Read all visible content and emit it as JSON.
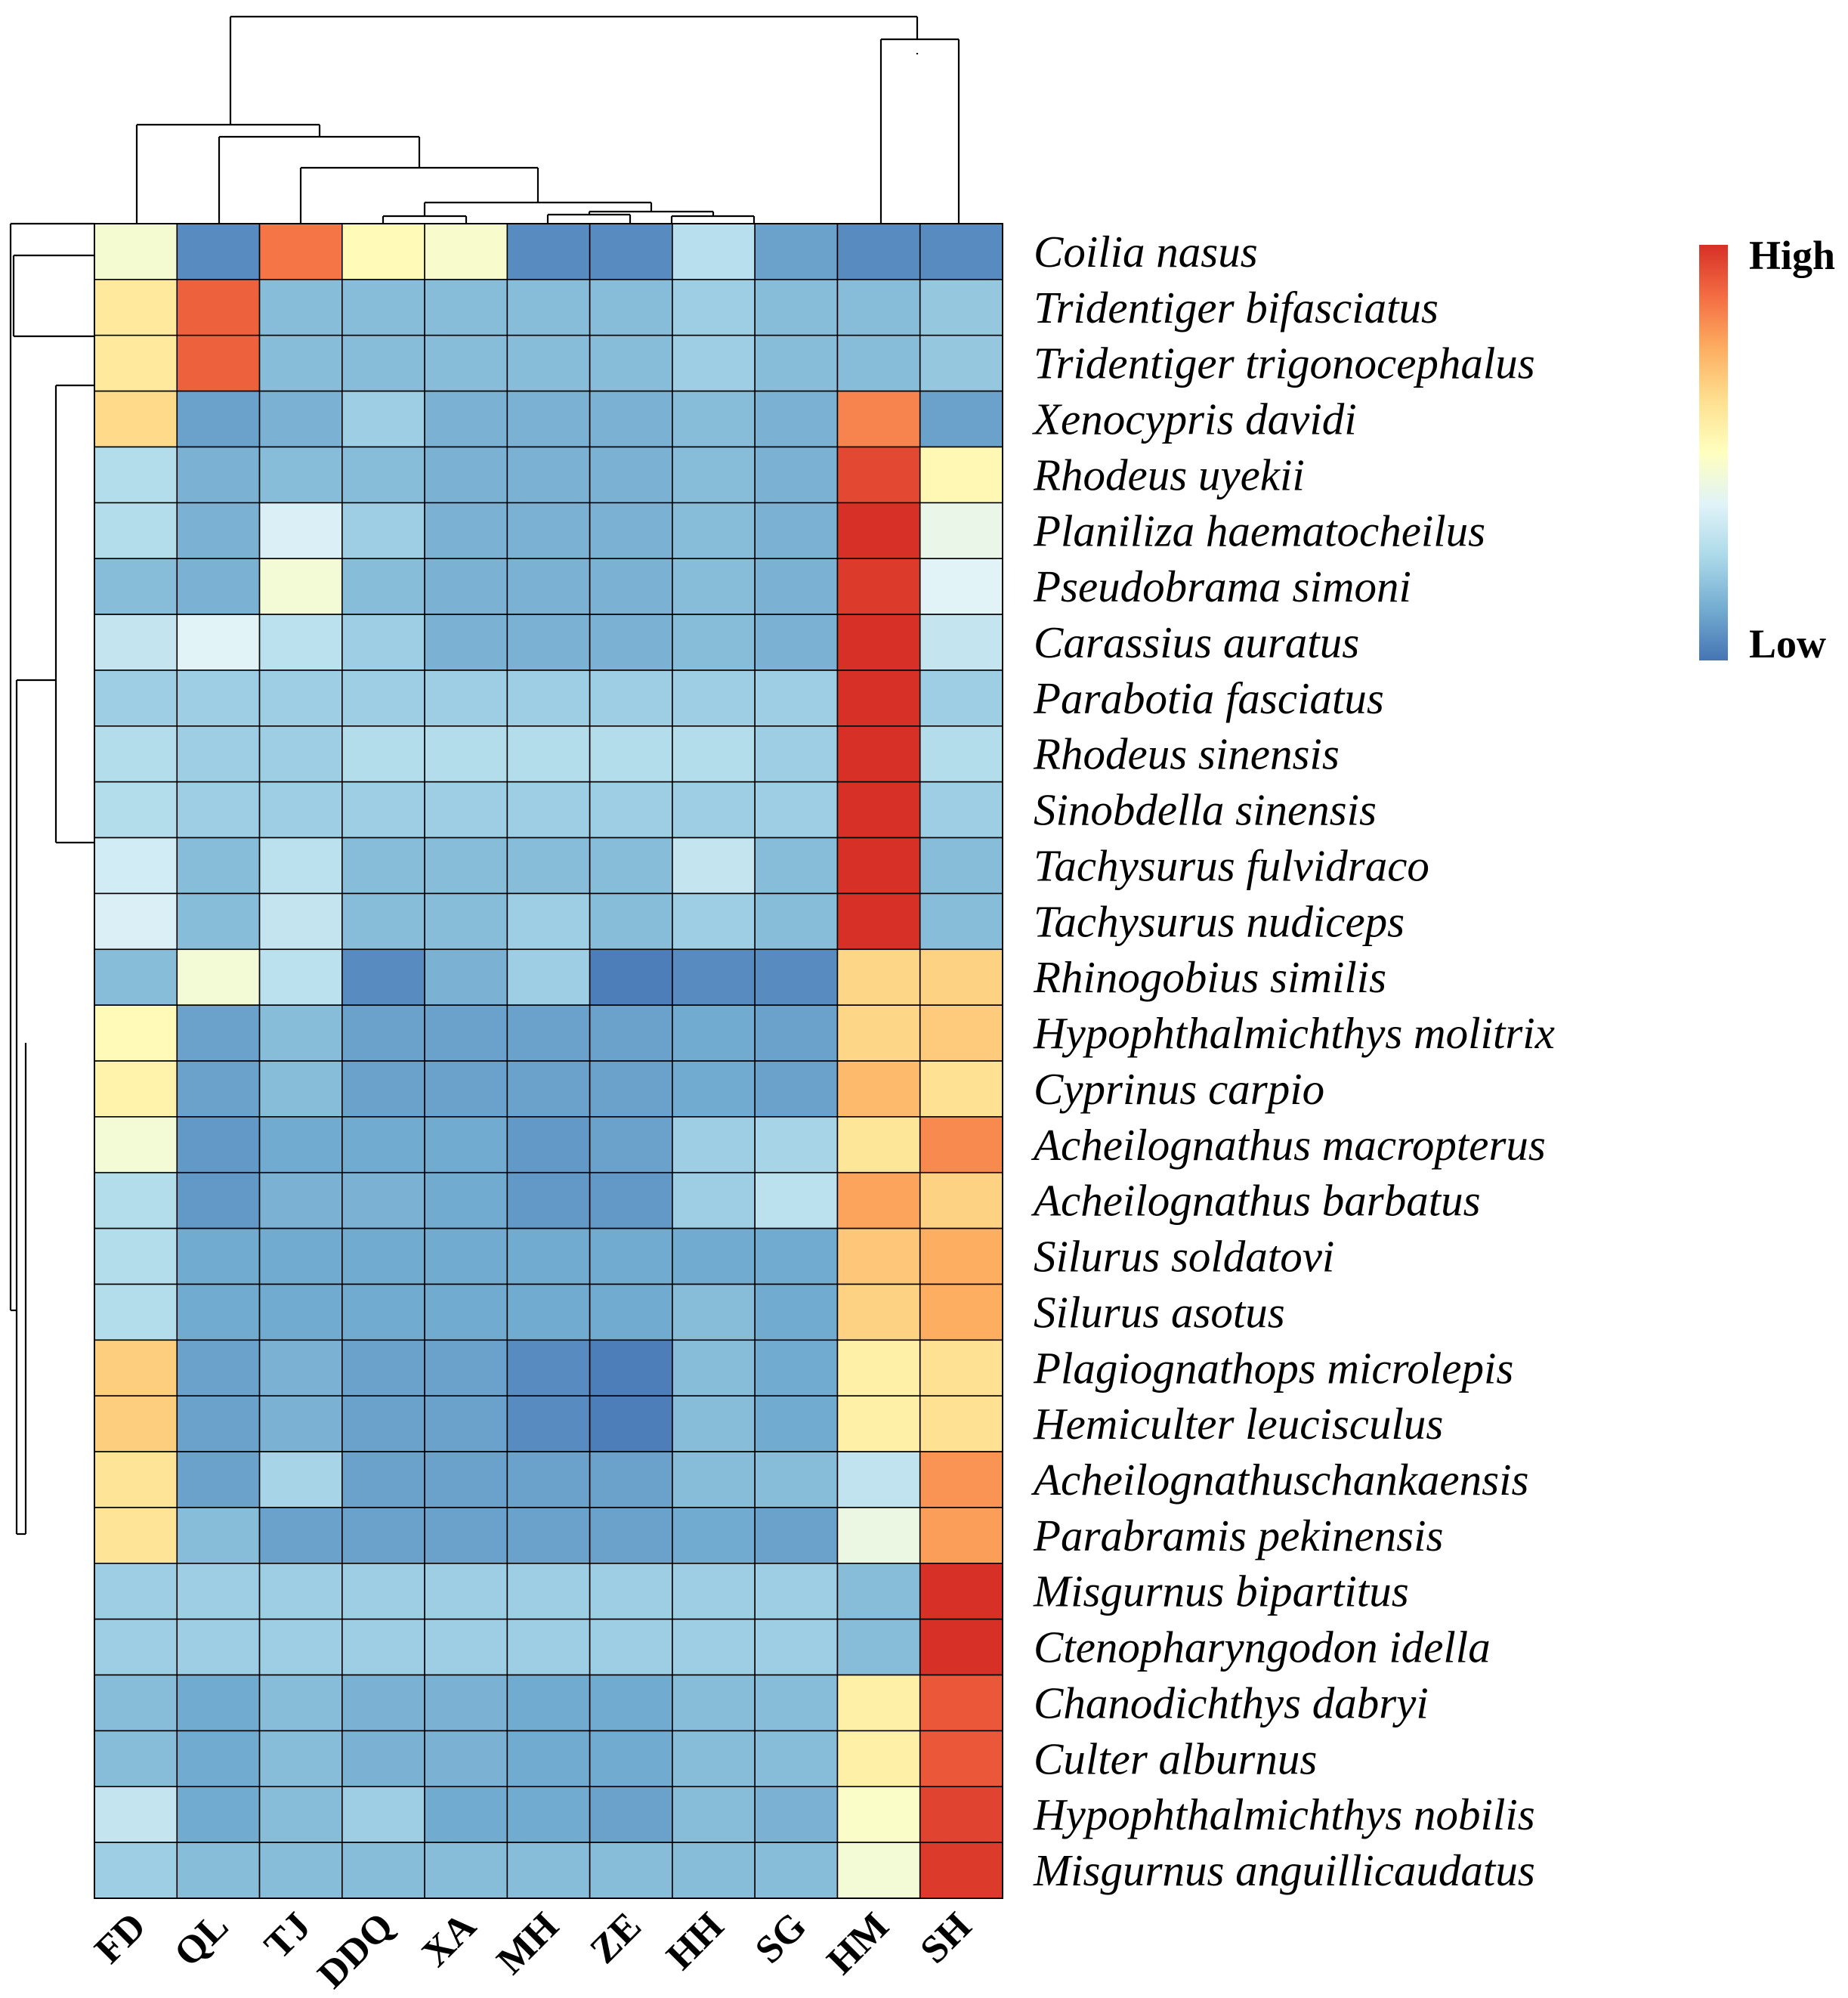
{
  "chart_data": {
    "type": "heatmap",
    "title": "",
    "columns": [
      "FD",
      "QL",
      "TJ",
      "DDQ",
      "XA",
      "MH",
      "ZE",
      "HH",
      "SG",
      "HM",
      "SH"
    ],
    "rows": [
      "Coilia nasus",
      "Tridentiger bifasciatus",
      "Tridentiger trigonocephalus",
      "Xenocypris davidi",
      "Rhodeus uyekii",
      "Planiliza haematocheilus",
      "Pseudobrama simoni",
      "Carassius auratus",
      "Parabotia fasciatus",
      "Rhodeus sinensis",
      "Sinobdella sinensis",
      "Tachysurus fulvidraco",
      "Tachysurus nudiceps",
      "Rhinogobius similis",
      "Hypophthalmichthys molitrix",
      "Cyprinus carpio",
      "Acheilognathus macropterus",
      "Acheilognathus barbatus",
      "Silurus soldatovi",
      "Silurus asotus",
      "Plagiognathops microlepis",
      "Hemiculter leucisculus",
      "Acheilognathuschankaensis",
      "Parabramis pekinensis",
      "Misgurnus bipartitus",
      "Ctenopharyngodon idella",
      "Chanodichthys dabryi",
      "Culter alburnus",
      "Hypophthalmichthys nobilis",
      "Misgurnus anguillicaudatus"
    ],
    "values": [
      [
        0.46,
        0.05,
        0.86,
        0.52,
        0.47,
        0.05,
        0.05,
        0.28,
        0.1,
        0.05,
        0.05
      ],
      [
        0.59,
        0.9,
        0.17,
        0.17,
        0.17,
        0.17,
        0.17,
        0.22,
        0.17,
        0.17,
        0.2
      ],
      [
        0.59,
        0.9,
        0.17,
        0.17,
        0.17,
        0.17,
        0.17,
        0.22,
        0.17,
        0.17,
        0.2
      ],
      [
        0.64,
        0.1,
        0.14,
        0.22,
        0.14,
        0.14,
        0.14,
        0.17,
        0.14,
        0.83,
        0.1
      ],
      [
        0.27,
        0.14,
        0.17,
        0.17,
        0.14,
        0.14,
        0.14,
        0.17,
        0.14,
        0.95,
        0.53
      ],
      [
        0.27,
        0.14,
        0.36,
        0.22,
        0.14,
        0.14,
        0.14,
        0.17,
        0.14,
        1.0,
        0.41
      ],
      [
        0.17,
        0.14,
        0.45,
        0.17,
        0.14,
        0.14,
        0.14,
        0.17,
        0.14,
        0.98,
        0.38
      ],
      [
        0.31,
        0.38,
        0.29,
        0.22,
        0.14,
        0.14,
        0.14,
        0.17,
        0.14,
        1.0,
        0.31
      ],
      [
        0.22,
        0.22,
        0.22,
        0.22,
        0.22,
        0.22,
        0.22,
        0.22,
        0.22,
        1.0,
        0.22
      ],
      [
        0.27,
        0.22,
        0.22,
        0.27,
        0.27,
        0.27,
        0.27,
        0.27,
        0.22,
        1.0,
        0.27
      ],
      [
        0.27,
        0.22,
        0.22,
        0.22,
        0.22,
        0.22,
        0.22,
        0.22,
        0.22,
        1.0,
        0.22
      ],
      [
        0.34,
        0.17,
        0.29,
        0.17,
        0.17,
        0.17,
        0.17,
        0.31,
        0.17,
        1.0,
        0.17
      ],
      [
        0.36,
        0.17,
        0.31,
        0.17,
        0.17,
        0.22,
        0.17,
        0.22,
        0.17,
        1.0,
        0.17
      ],
      [
        0.17,
        0.45,
        0.29,
        0.05,
        0.14,
        0.22,
        0.02,
        0.05,
        0.05,
        0.65,
        0.66
      ],
      [
        0.52,
        0.1,
        0.17,
        0.1,
        0.1,
        0.1,
        0.1,
        0.12,
        0.1,
        0.65,
        0.68
      ],
      [
        0.55,
        0.1,
        0.17,
        0.1,
        0.1,
        0.1,
        0.1,
        0.12,
        0.1,
        0.72,
        0.62
      ],
      [
        0.45,
        0.08,
        0.12,
        0.12,
        0.12,
        0.08,
        0.1,
        0.22,
        0.24,
        0.6,
        0.82
      ],
      [
        0.27,
        0.08,
        0.14,
        0.14,
        0.12,
        0.08,
        0.08,
        0.22,
        0.29,
        0.77,
        0.66
      ],
      [
        0.27,
        0.12,
        0.12,
        0.12,
        0.12,
        0.12,
        0.12,
        0.12,
        0.12,
        0.69,
        0.75
      ],
      [
        0.27,
        0.12,
        0.12,
        0.12,
        0.12,
        0.12,
        0.12,
        0.17,
        0.12,
        0.66,
        0.75
      ],
      [
        0.67,
        0.1,
        0.14,
        0.1,
        0.1,
        0.05,
        0.02,
        0.17,
        0.12,
        0.56,
        0.62
      ],
      [
        0.67,
        0.1,
        0.14,
        0.1,
        0.1,
        0.05,
        0.02,
        0.17,
        0.12,
        0.56,
        0.62
      ],
      [
        0.61,
        0.1,
        0.24,
        0.1,
        0.1,
        0.1,
        0.1,
        0.17,
        0.17,
        0.3,
        0.8
      ],
      [
        0.61,
        0.17,
        0.1,
        0.1,
        0.1,
        0.1,
        0.1,
        0.12,
        0.1,
        0.42,
        0.78
      ],
      [
        0.22,
        0.22,
        0.22,
        0.22,
        0.22,
        0.22,
        0.22,
        0.22,
        0.22,
        0.17,
        1.0
      ],
      [
        0.22,
        0.22,
        0.22,
        0.22,
        0.22,
        0.22,
        0.22,
        0.22,
        0.22,
        0.17,
        1.0
      ],
      [
        0.17,
        0.12,
        0.17,
        0.14,
        0.14,
        0.12,
        0.12,
        0.17,
        0.17,
        0.56,
        0.92
      ],
      [
        0.17,
        0.12,
        0.17,
        0.14,
        0.14,
        0.12,
        0.12,
        0.17,
        0.17,
        0.56,
        0.92
      ],
      [
        0.31,
        0.12,
        0.17,
        0.22,
        0.12,
        0.12,
        0.1,
        0.17,
        0.14,
        0.48,
        0.96
      ],
      [
        0.22,
        0.17,
        0.17,
        0.17,
        0.17,
        0.17,
        0.17,
        0.17,
        0.17,
        0.45,
        0.98
      ]
    ],
    "color_scale": {
      "low_label": "Low",
      "high_label": "High",
      "stops": [
        "#4575b4",
        "#74add1",
        "#abd9e9",
        "#e0f3f8",
        "#ffffbf",
        "#fee090",
        "#fdae61",
        "#f46d43",
        "#d73027"
      ]
    },
    "row_dendrogram": true,
    "column_dendrogram": true,
    "legend_position": "top-right"
  }
}
